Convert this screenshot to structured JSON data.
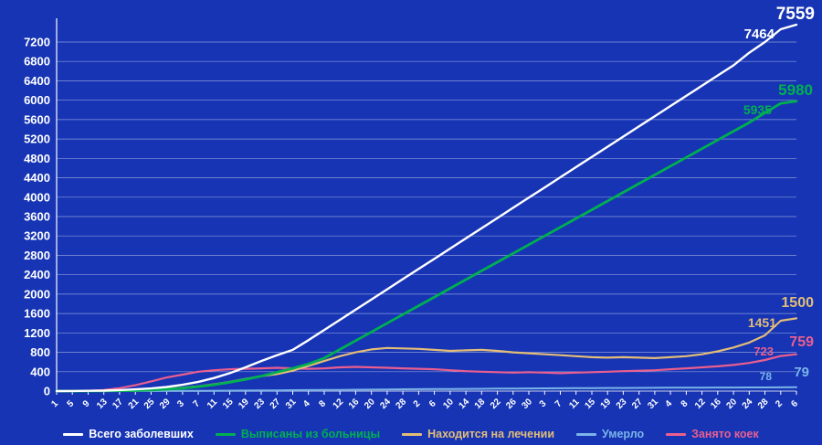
{
  "page_background": "#1634b4",
  "chart_data": {
    "type": "line",
    "title": "",
    "grid": "horizontal",
    "legend_position": "bottom",
    "ylim": [
      0,
      7200
    ],
    "y_tick_step": 400,
    "x_tick_labels": [
      "1",
      "5",
      "9",
      "13",
      "17",
      "21",
      "25",
      "29",
      "3",
      "7",
      "11",
      "15",
      "19",
      "23",
      "27",
      "31",
      "4",
      "8",
      "12",
      "16",
      "20",
      "24",
      "28",
      "2",
      "6",
      "10",
      "14",
      "18",
      "22",
      "26",
      "30",
      "3",
      "7",
      "11",
      "15",
      "19",
      "23",
      "27",
      "31",
      "4",
      "8",
      "12",
      "16",
      "20",
      "24",
      "28",
      "2",
      "6"
    ],
    "series": [
      {
        "name": "Всего заболевших",
        "color": "#ffffff",
        "values": [
          0,
          2,
          5,
          10,
          20,
          35,
          55,
          85,
          130,
          190,
          270,
          370,
          490,
          620,
          740,
          850,
          1050,
          1260,
          1470,
          1680,
          1890,
          2100,
          2310,
          2520,
          2730,
          2940,
          3150,
          3360,
          3570,
          3780,
          3990,
          4200,
          4410,
          4620,
          4830,
          5040,
          5250,
          5460,
          5670,
          5880,
          6090,
          6300,
          6510,
          6720,
          6980,
          7200,
          7464,
          7559
        ]
      },
      {
        "name": "Выписаны из больницы",
        "color": "#00b050",
        "values": [
          0,
          0,
          0,
          2,
          5,
          10,
          20,
          38,
          60,
          90,
          130,
          180,
          240,
          310,
          390,
          470,
          560,
          680,
          860,
          1040,
          1220,
          1400,
          1580,
          1760,
          1940,
          2120,
          2300,
          2480,
          2660,
          2840,
          3020,
          3200,
          3380,
          3560,
          3740,
          3920,
          4100,
          4280,
          4460,
          4640,
          4820,
          5000,
          5180,
          5360,
          5540,
          5740,
          5935,
          5980
        ]
      },
      {
        "name": "Находится на лечении",
        "color": "#e3bd78",
        "values": [
          0,
          2,
          5,
          8,
          15,
          25,
          35,
          48,
          70,
          100,
          140,
          190,
          250,
          310,
          350,
          420,
          520,
          620,
          720,
          800,
          860,
          890,
          880,
          870,
          850,
          830,
          840,
          850,
          830,
          800,
          780,
          760,
          740,
          720,
          700,
          690,
          700,
          690,
          680,
          700,
          720,
          760,
          820,
          900,
          1000,
          1150,
          1451,
          1500
        ]
      },
      {
        "name": "Умерло",
        "color": "#7cb4e8",
        "values": [
          0,
          0,
          0,
          0,
          1,
          1,
          2,
          3,
          4,
          6,
          8,
          10,
          12,
          14,
          16,
          18,
          20,
          22,
          25,
          28,
          31,
          34,
          37,
          40,
          42,
          44,
          46,
          48,
          50,
          52,
          54,
          56,
          58,
          60,
          62,
          64,
          65,
          66,
          68,
          70,
          71,
          72,
          73,
          74,
          75,
          76,
          78,
          79
        ]
      },
      {
        "name": "Занято коек",
        "color": "#ea5f8f",
        "values": [
          0,
          0,
          5,
          20,
          60,
          120,
          200,
          280,
          340,
          400,
          430,
          450,
          460,
          470,
          480,
          470,
          460,
          470,
          490,
          500,
          490,
          480,
          470,
          460,
          450,
          430,
          410,
          400,
          390,
          380,
          390,
          380,
          370,
          380,
          390,
          400,
          410,
          420,
          430,
          450,
          470,
          490,
          510,
          540,
          580,
          640,
          723,
          759
        ]
      }
    ],
    "annotations": {
      "total_final": "7559",
      "total_prev": "7464",
      "discharged_final": "5980",
      "discharged_prev": "5935",
      "treatment_final": "1500",
      "treatment_prev": "1451",
      "died_final": "79",
      "died_prev": "78",
      "beds_final": "759",
      "beds_prev": "723"
    }
  }
}
